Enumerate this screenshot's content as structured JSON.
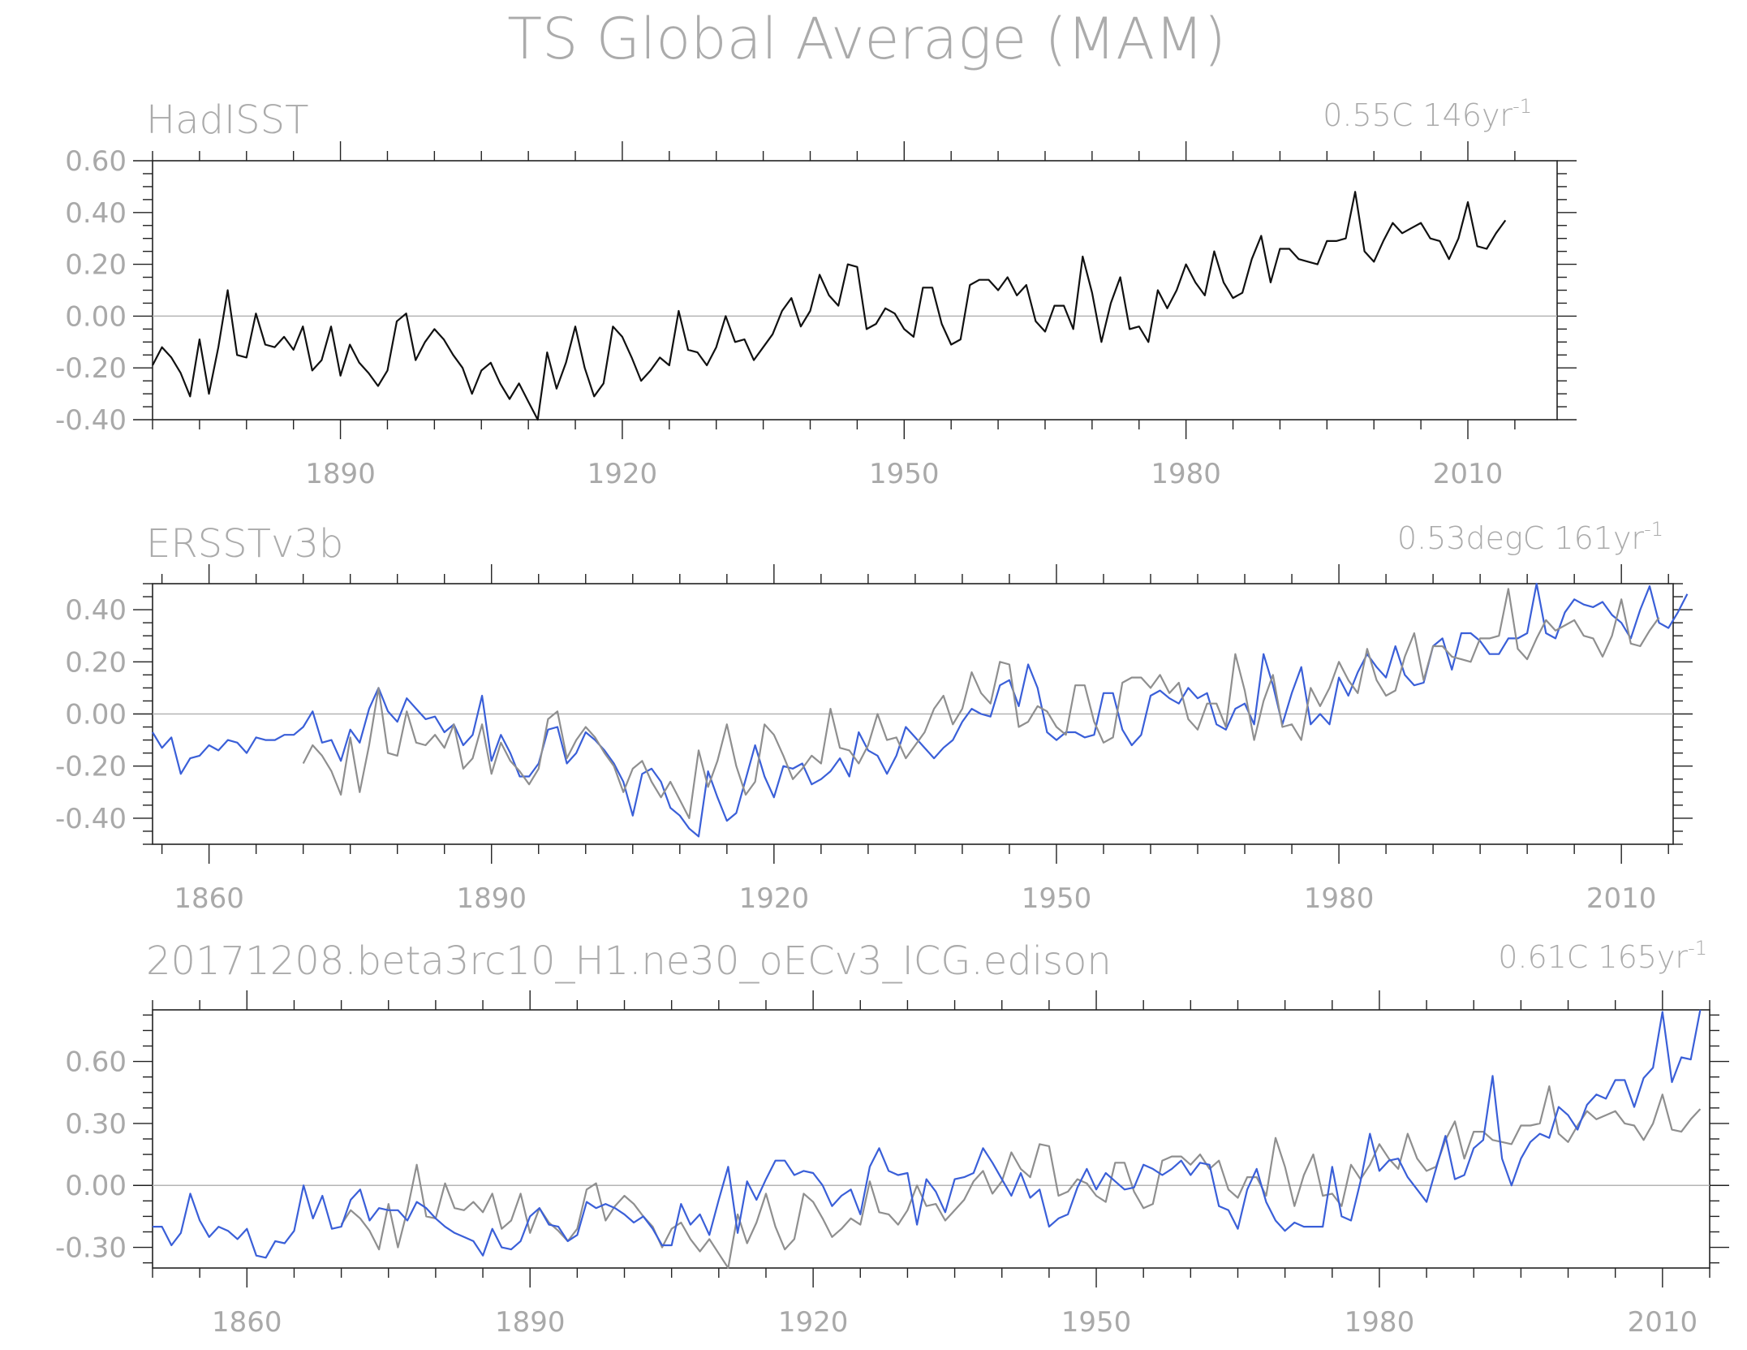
{
  "figure": {
    "title": "TS Global Average (MAM)"
  },
  "colors": {
    "black_series": "#111111",
    "gray_series": "#8f8f8f",
    "blue_series": "#3a5fd8",
    "text": "#ababab"
  },
  "chart_data": [
    {
      "type": "line",
      "title": "HadISST",
      "trend_label": "0.55C 146yr",
      "trend_exp": "-1",
      "xlim": [
        1870,
        2019.5
      ],
      "ylim": [
        -0.4,
        0.6
      ],
      "yticks": [
        "-0.40",
        "-0.20",
        "0.00",
        "0.20",
        "0.40",
        "0.60"
      ],
      "xticks": [
        "1890",
        "1920",
        "1950",
        "1980",
        "2010"
      ],
      "series": [
        {
          "color": "black",
          "x_start": 1870,
          "values": [
            -0.19,
            -0.12,
            -0.16,
            -0.22,
            -0.31,
            -0.09,
            -0.3,
            -0.12,
            0.1,
            -0.15,
            -0.16,
            0.01,
            -0.11,
            -0.12,
            -0.08,
            -0.13,
            -0.04,
            -0.21,
            -0.17,
            -0.04,
            -0.23,
            -0.11,
            -0.18,
            -0.22,
            -0.27,
            -0.21,
            -0.02,
            0.01,
            -0.17,
            -0.1,
            -0.05,
            -0.09,
            -0.15,
            -0.2,
            -0.3,
            -0.21,
            -0.18,
            -0.26,
            -0.32,
            -0.26,
            -0.33,
            -0.4,
            -0.14,
            -0.28,
            -0.18,
            -0.04,
            -0.2,
            -0.31,
            -0.26,
            -0.04,
            -0.08,
            -0.16,
            -0.25,
            -0.21,
            -0.16,
            -0.19,
            0.02,
            -0.13,
            -0.14,
            -0.19,
            -0.12,
            0.0,
            -0.1,
            -0.09,
            -0.17,
            -0.12,
            -0.07,
            0.02,
            0.07,
            -0.04,
            0.02,
            0.16,
            0.08,
            0.04,
            0.2,
            0.19,
            -0.05,
            -0.03,
            0.03,
            0.01,
            -0.05,
            -0.08,
            0.11,
            0.11,
            -0.03,
            -0.11,
            -0.09,
            0.12,
            0.14,
            0.14,
            0.1,
            0.15,
            0.08,
            0.12,
            -0.02,
            -0.06,
            0.04,
            0.04,
            -0.05,
            0.23,
            0.09,
            -0.1,
            0.05,
            0.15,
            -0.05,
            -0.04,
            -0.1,
            0.1,
            0.03,
            0.1,
            0.2,
            0.13,
            0.08,
            0.25,
            0.13,
            0.07,
            0.09,
            0.22,
            0.31,
            0.13,
            0.26,
            0.26,
            0.22,
            0.21,
            0.2,
            0.29,
            0.29,
            0.3,
            0.48,
            0.25,
            0.21,
            0.29,
            0.36,
            0.32,
            0.34,
            0.36,
            0.3,
            0.29,
            0.22,
            0.3,
            0.44,
            0.27,
            0.26,
            0.32,
            0.37
          ]
        }
      ]
    },
    {
      "type": "line",
      "title": "ERSSTv3b",
      "trend_label": "0.53degC 161yr",
      "trend_exp": "-1",
      "xlim": [
        1854,
        2015.5
      ],
      "ylim": [
        -0.5,
        0.5
      ],
      "yticks": [
        "-0.40",
        "-0.20",
        "0.00",
        "0.20",
        "0.40"
      ],
      "xticks": [
        "1860",
        "1890",
        "1920",
        "1950",
        "1980",
        "2010"
      ],
      "series": [
        {
          "color": "blue",
          "x_start": 1854,
          "values": [
            -0.07,
            -0.13,
            -0.09,
            -0.23,
            -0.17,
            -0.16,
            -0.12,
            -0.14,
            -0.1,
            -0.11,
            -0.15,
            -0.09,
            -0.1,
            -0.1,
            -0.08,
            -0.08,
            -0.05,
            0.01,
            -0.11,
            -0.1,
            -0.18,
            -0.06,
            -0.11,
            0.02,
            0.1,
            0.01,
            -0.03,
            0.06,
            0.02,
            -0.02,
            -0.01,
            -0.07,
            -0.04,
            -0.12,
            -0.08,
            0.07,
            -0.18,
            -0.08,
            -0.15,
            -0.24,
            -0.24,
            -0.19,
            -0.06,
            -0.05,
            -0.19,
            -0.15,
            -0.07,
            -0.1,
            -0.14,
            -0.19,
            -0.26,
            -0.39,
            -0.23,
            -0.21,
            -0.26,
            -0.36,
            -0.39,
            -0.44,
            -0.47,
            -0.22,
            -0.32,
            -0.41,
            -0.38,
            -0.25,
            -0.12,
            -0.24,
            -0.32,
            -0.2,
            -0.21,
            -0.19,
            -0.27,
            -0.25,
            -0.22,
            -0.17,
            -0.24,
            -0.07,
            -0.14,
            -0.16,
            -0.23,
            -0.16,
            -0.05,
            -0.09,
            -0.13,
            -0.17,
            -0.13,
            -0.1,
            -0.03,
            0.02,
            0.0,
            -0.01,
            0.11,
            0.13,
            0.03,
            0.19,
            0.1,
            -0.07,
            -0.1,
            -0.07,
            -0.07,
            -0.09,
            -0.08,
            0.08,
            0.08,
            -0.06,
            -0.12,
            -0.08,
            0.07,
            0.09,
            0.06,
            0.04,
            0.1,
            0.06,
            0.08,
            -0.04,
            -0.06,
            0.02,
            0.04,
            -0.04,
            0.23,
            0.11,
            -0.04,
            0.08,
            0.18,
            -0.04,
            0.0,
            -0.04,
            0.14,
            0.07,
            0.16,
            0.23,
            0.18,
            0.14,
            0.26,
            0.15,
            0.11,
            0.12,
            0.26,
            0.29,
            0.17,
            0.31,
            0.31,
            0.28,
            0.23,
            0.23,
            0.29,
            0.29,
            0.31,
            0.5,
            0.31,
            0.29,
            0.39,
            0.44,
            0.42,
            0.41,
            0.43,
            0.38,
            0.35,
            0.29,
            0.4,
            0.49,
            0.35,
            0.33,
            0.39,
            0.46
          ]
        },
        {
          "color": "gray",
          "x_start": 1870,
          "values": [
            -0.19,
            -0.12,
            -0.16,
            -0.22,
            -0.31,
            -0.09,
            -0.3,
            -0.12,
            0.1,
            -0.15,
            -0.16,
            0.01,
            -0.11,
            -0.12,
            -0.08,
            -0.13,
            -0.04,
            -0.21,
            -0.17,
            -0.04,
            -0.23,
            -0.11,
            -0.18,
            -0.22,
            -0.27,
            -0.21,
            -0.02,
            0.01,
            -0.17,
            -0.1,
            -0.05,
            -0.09,
            -0.15,
            -0.2,
            -0.3,
            -0.21,
            -0.18,
            -0.26,
            -0.32,
            -0.26,
            -0.33,
            -0.4,
            -0.14,
            -0.28,
            -0.18,
            -0.04,
            -0.2,
            -0.31,
            -0.26,
            -0.04,
            -0.08,
            -0.16,
            -0.25,
            -0.21,
            -0.16,
            -0.19,
            0.02,
            -0.13,
            -0.14,
            -0.19,
            -0.12,
            0.0,
            -0.1,
            -0.09,
            -0.17,
            -0.12,
            -0.07,
            0.02,
            0.07,
            -0.04,
            0.02,
            0.16,
            0.08,
            0.04,
            0.2,
            0.19,
            -0.05,
            -0.03,
            0.03,
            0.01,
            -0.05,
            -0.08,
            0.11,
            0.11,
            -0.03,
            -0.11,
            -0.09,
            0.12,
            0.14,
            0.14,
            0.1,
            0.15,
            0.08,
            0.12,
            -0.02,
            -0.06,
            0.04,
            0.04,
            -0.05,
            0.23,
            0.09,
            -0.1,
            0.05,
            0.15,
            -0.05,
            -0.04,
            -0.1,
            0.1,
            0.03,
            0.1,
            0.2,
            0.13,
            0.08,
            0.25,
            0.13,
            0.07,
            0.09,
            0.22,
            0.31,
            0.13,
            0.26,
            0.26,
            0.22,
            0.21,
            0.2,
            0.29,
            0.29,
            0.3,
            0.48,
            0.25,
            0.21,
            0.29,
            0.36,
            0.32,
            0.34,
            0.36,
            0.3,
            0.29,
            0.22,
            0.3,
            0.44,
            0.27,
            0.26,
            0.32,
            0.37
          ]
        }
      ]
    },
    {
      "type": "line",
      "title": "20171208.beta3rc10_H1.ne30_oECv3_ICG.edison",
      "trend_label": "0.61C 165yr",
      "trend_exp": "-1",
      "xlim": [
        1850,
        2015
      ],
      "ylim": [
        -0.4,
        0.85
      ],
      "yticks": [
        "-0.30",
        "0.00",
        "0.30",
        "0.60"
      ],
      "xticks": [
        "1860",
        "1890",
        "1920",
        "1950",
        "1980",
        "2010"
      ],
      "series": [
        {
          "color": "gray",
          "x_start": 1870,
          "values": [
            -0.19,
            -0.12,
            -0.16,
            -0.22,
            -0.31,
            -0.09,
            -0.3,
            -0.12,
            0.1,
            -0.15,
            -0.16,
            0.01,
            -0.11,
            -0.12,
            -0.08,
            -0.13,
            -0.04,
            -0.21,
            -0.17,
            -0.04,
            -0.23,
            -0.11,
            -0.18,
            -0.22,
            -0.27,
            -0.21,
            -0.02,
            0.01,
            -0.17,
            -0.1,
            -0.05,
            -0.09,
            -0.15,
            -0.2,
            -0.3,
            -0.21,
            -0.18,
            -0.26,
            -0.32,
            -0.26,
            -0.33,
            -0.4,
            -0.14,
            -0.28,
            -0.18,
            -0.04,
            -0.2,
            -0.31,
            -0.26,
            -0.04,
            -0.08,
            -0.16,
            -0.25,
            -0.21,
            -0.16,
            -0.19,
            0.02,
            -0.13,
            -0.14,
            -0.19,
            -0.12,
            0.0,
            -0.1,
            -0.09,
            -0.17,
            -0.12,
            -0.07,
            0.02,
            0.07,
            -0.04,
            0.02,
            0.16,
            0.08,
            0.04,
            0.2,
            0.19,
            -0.05,
            -0.03,
            0.03,
            0.01,
            -0.05,
            -0.08,
            0.11,
            0.11,
            -0.03,
            -0.11,
            -0.09,
            0.12,
            0.14,
            0.14,
            0.1,
            0.15,
            0.08,
            0.12,
            -0.02,
            -0.06,
            0.04,
            0.04,
            -0.05,
            0.23,
            0.09,
            -0.1,
            0.05,
            0.15,
            -0.05,
            -0.04,
            -0.1,
            0.1,
            0.03,
            0.1,
            0.2,
            0.13,
            0.08,
            0.25,
            0.13,
            0.07,
            0.09,
            0.22,
            0.31,
            0.13,
            0.26,
            0.26,
            0.22,
            0.21,
            0.2,
            0.29,
            0.29,
            0.3,
            0.48,
            0.25,
            0.21,
            0.29,
            0.36,
            0.32,
            0.34,
            0.36,
            0.3,
            0.29,
            0.22,
            0.3,
            0.44,
            0.27,
            0.26,
            0.32,
            0.37
          ]
        },
        {
          "color": "blue",
          "x_start": 1850,
          "values": [
            -0.2,
            -0.2,
            -0.29,
            -0.23,
            -0.04,
            -0.17,
            -0.25,
            -0.2,
            -0.22,
            -0.26,
            -0.21,
            -0.34,
            -0.35,
            -0.27,
            -0.28,
            -0.22,
            0.0,
            -0.16,
            -0.05,
            -0.21,
            -0.2,
            -0.07,
            -0.02,
            -0.17,
            -0.11,
            -0.12,
            -0.12,
            -0.17,
            -0.08,
            -0.11,
            -0.16,
            -0.2,
            -0.23,
            -0.25,
            -0.27,
            -0.34,
            -0.21,
            -0.3,
            -0.31,
            -0.27,
            -0.15,
            -0.11,
            -0.19,
            -0.2,
            -0.27,
            -0.24,
            -0.08,
            -0.11,
            -0.09,
            -0.11,
            -0.14,
            -0.18,
            -0.15,
            -0.21,
            -0.29,
            -0.29,
            -0.09,
            -0.19,
            -0.14,
            -0.24,
            -0.07,
            0.09,
            -0.23,
            0.02,
            -0.07,
            0.03,
            0.12,
            0.12,
            0.05,
            0.07,
            0.06,
            0.0,
            -0.1,
            -0.05,
            -0.02,
            -0.14,
            0.09,
            0.18,
            0.07,
            0.05,
            0.06,
            -0.19,
            0.03,
            -0.03,
            -0.13,
            0.03,
            0.04,
            0.06,
            0.18,
            0.11,
            0.03,
            -0.05,
            0.06,
            -0.06,
            -0.02,
            -0.2,
            -0.16,
            -0.14,
            -0.01,
            0.08,
            -0.02,
            0.06,
            0.02,
            -0.02,
            -0.01,
            0.1,
            0.08,
            0.05,
            0.08,
            0.12,
            0.05,
            0.11,
            0.1,
            -0.1,
            -0.12,
            -0.21,
            -0.02,
            0.08,
            -0.08,
            -0.17,
            -0.22,
            -0.18,
            -0.2,
            -0.2,
            -0.2,
            0.09,
            -0.15,
            -0.17,
            0.02,
            0.25,
            0.07,
            0.12,
            0.13,
            0.04,
            -0.02,
            -0.08,
            0.08,
            0.24,
            0.03,
            0.05,
            0.18,
            0.22,
            0.53,
            0.13,
            0.0,
            0.13,
            0.21,
            0.25,
            0.23,
            0.38,
            0.34,
            0.27,
            0.39,
            0.44,
            0.42,
            0.51,
            0.51,
            0.38,
            0.52,
            0.57,
            0.84,
            0.5,
            0.62,
            0.61,
            0.85
          ]
        }
      ]
    }
  ]
}
